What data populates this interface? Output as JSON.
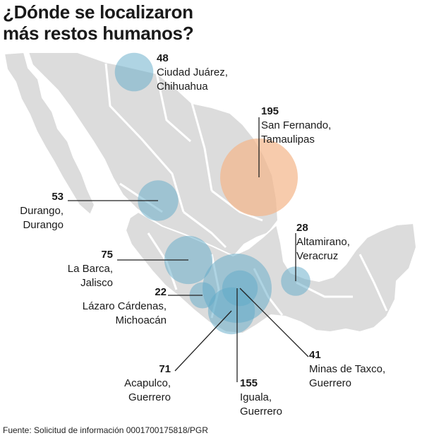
{
  "title": {
    "line1": "¿Dónde se localizaron",
    "line2": "más restos humanos?"
  },
  "colors": {
    "map": "#dcdcdc",
    "bubble_blue": "#5fa9c7",
    "bubble_orange": "#f3b589",
    "leader": "#222222"
  },
  "locations": [
    {
      "id": "ciudad-juarez",
      "count": "48",
      "place_line1": "Ciudad Juárez,",
      "place_line2": "Chihuahua",
      "color": "blue"
    },
    {
      "id": "san-fernando",
      "count": "195",
      "place_line1": "San Fernando,",
      "place_line2": "Tamaulipas",
      "color": "orange"
    },
    {
      "id": "durango",
      "count": "53",
      "place_line1": "Durango,",
      "place_line2": "Durango",
      "color": "blue"
    },
    {
      "id": "altamirano",
      "count": "28",
      "place_line1": "Altamirano,",
      "place_line2": "Veracruz",
      "color": "blue"
    },
    {
      "id": "la-barca",
      "count": "75",
      "place_line1": "La Barca,",
      "place_line2": "Jalisco",
      "color": "blue"
    },
    {
      "id": "lazaro-cardenas",
      "count": "22",
      "place_line1": "Lázaro Cárdenas,",
      "place_line2": "Michoacán",
      "color": "blue"
    },
    {
      "id": "minas-de-taxco",
      "count": "41",
      "place_line1": "Minas de Taxco,",
      "place_line2": "Guerrero",
      "color": "blue"
    },
    {
      "id": "acapulco",
      "count": "71",
      "place_line1": "Acapulco,",
      "place_line2": "Guerrero",
      "color": "blue"
    },
    {
      "id": "iguala",
      "count": "155",
      "place_line1": "Iguala,",
      "place_line2": "Guerrero",
      "color": "blue"
    }
  ],
  "source": "Fuente: Solicitud de información 0001700175818/PGR"
}
